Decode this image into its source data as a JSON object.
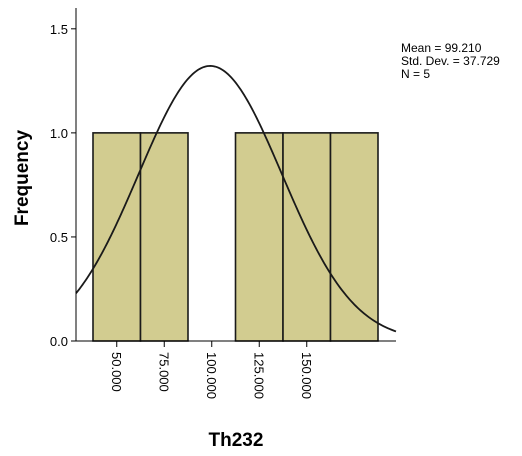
{
  "chart_data": {
    "type": "bar",
    "subtype": "histogram",
    "xlabel": "Th232",
    "ylabel": "Frequency",
    "ylim": [
      0,
      1.6
    ],
    "xlim": [
      40,
      165
    ],
    "bin_width": 25,
    "bins": [
      {
        "start": 37.5,
        "end": 62.5,
        "value": 1
      },
      {
        "start": 62.5,
        "end": 87.5,
        "value": 1
      },
      {
        "start": 87.5,
        "end": 112.5,
        "value": 0
      },
      {
        "start": 112.5,
        "end": 137.5,
        "value": 1
      },
      {
        "start": 137.5,
        "end": 162.5,
        "value": 1
      },
      {
        "start": 162.5,
        "end": 187.5,
        "value": 1
      }
    ],
    "x_ticks": [
      {
        "value": 50,
        "label": "50.000"
      },
      {
        "value": 75,
        "label": "75.000"
      },
      {
        "value": 100,
        "label": "100.000"
      },
      {
        "value": 125,
        "label": "125.000"
      },
      {
        "value": 150,
        "label": "150.000"
      }
    ],
    "y_ticks": [
      {
        "value": 0,
        "label": "0.0"
      },
      {
        "value": 0.5,
        "label": "0.5"
      },
      {
        "value": 1.0,
        "label": "1.0"
      },
      {
        "value": 1.5,
        "label": "1.5"
      }
    ],
    "normal_curve": {
      "mean": 99.21,
      "sd": 37.729,
      "n": 5
    },
    "stats": {
      "mean": "Mean = 99.210",
      "std_dev": "Std. Dev. = 37.729",
      "n": "N = 5"
    },
    "bar_fill": "#d2cc90",
    "bar_stroke": "#1a1a1a",
    "curve_color": "#1a1a1a",
    "grid": false,
    "legend": "none"
  }
}
